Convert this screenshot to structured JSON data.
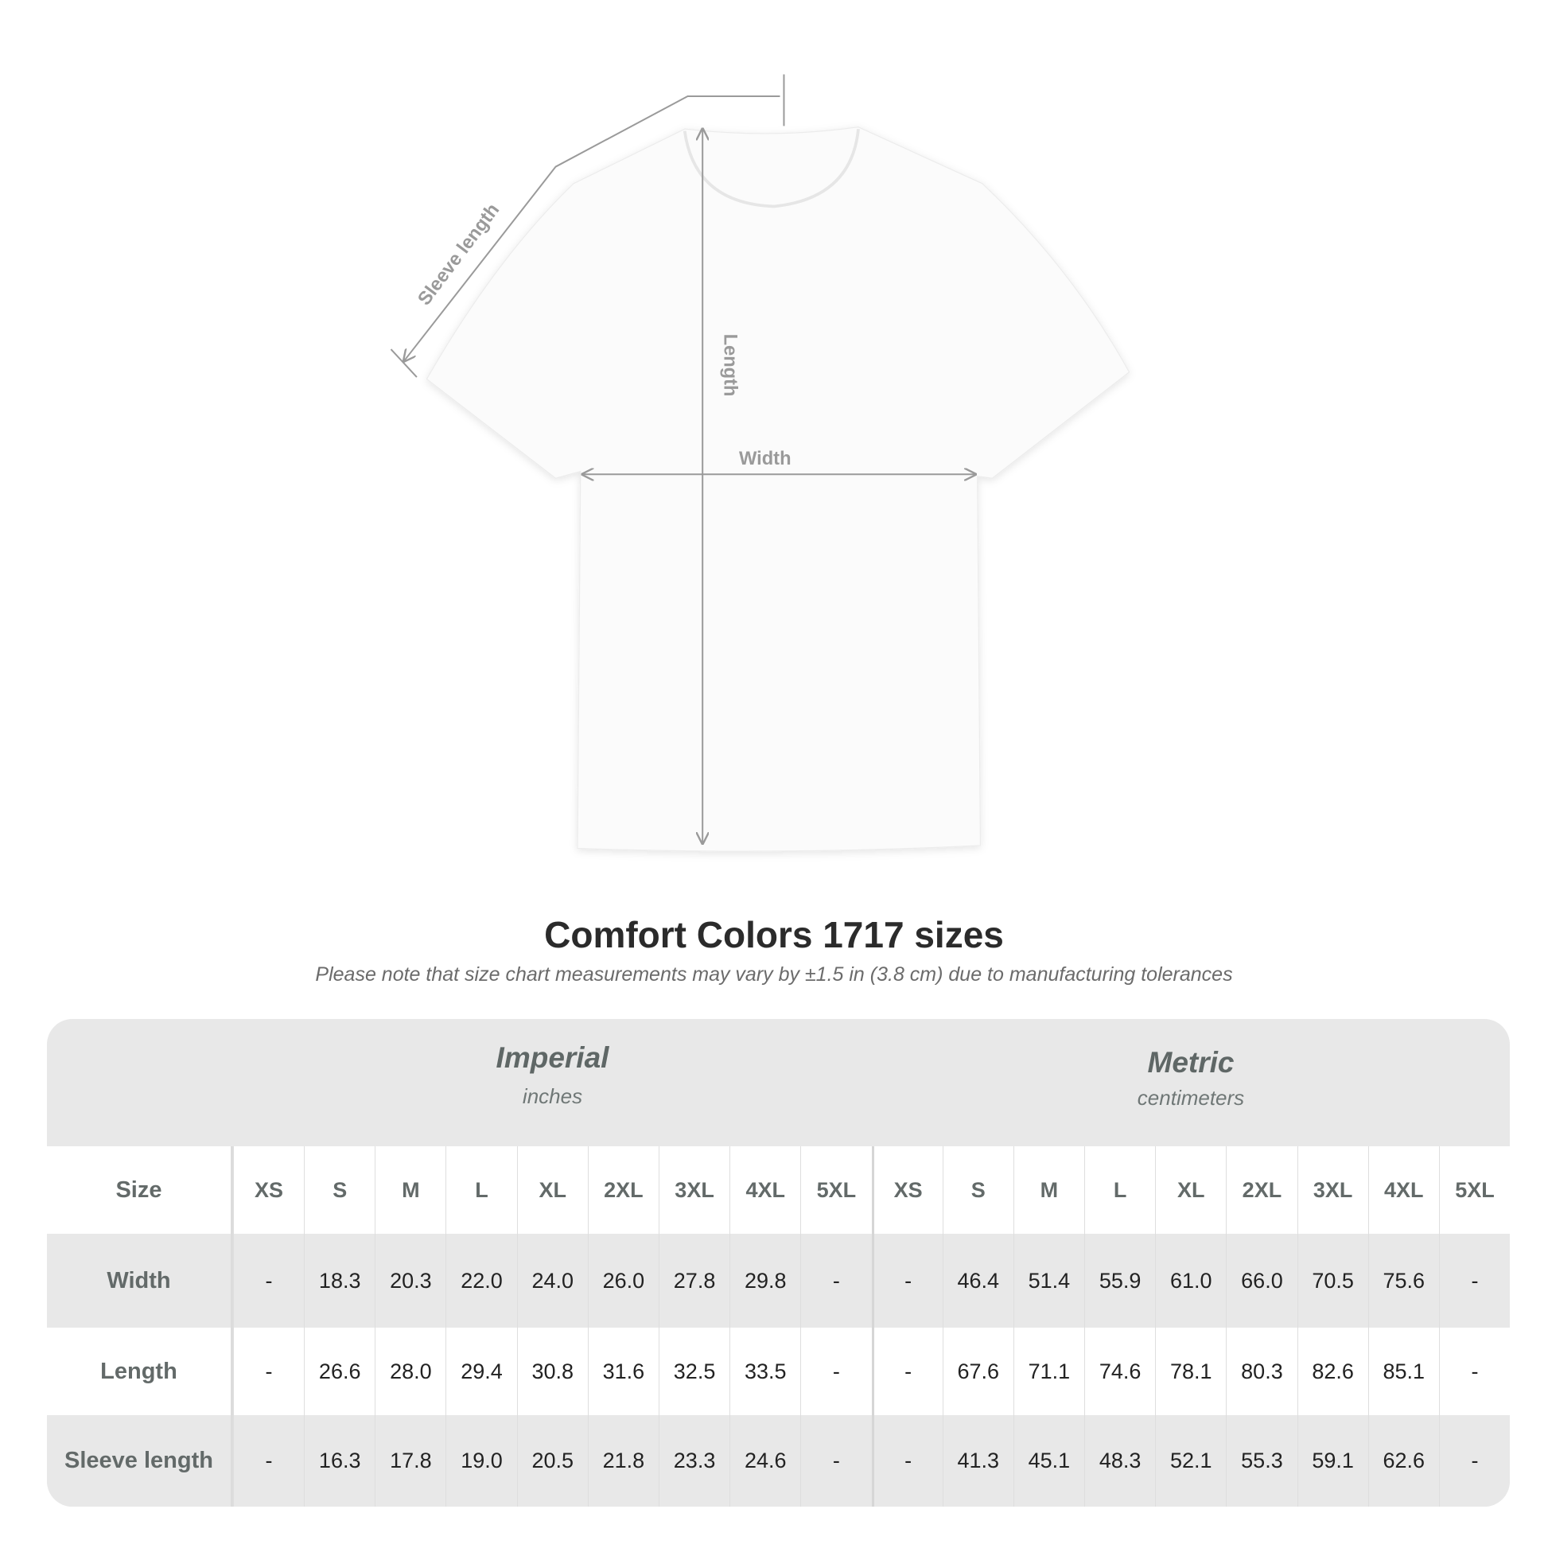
{
  "diagram": {
    "labels": {
      "sleeve_length": "Sleeve length",
      "length": "Length",
      "width": "Width"
    },
    "line_color": "#9a9a9a"
  },
  "title": "Comfort Colors 1717 sizes",
  "subtitle": "Please note that size chart measurements may vary by ±1.5 in (3.8 cm) due to manufacturing tolerances",
  "table": {
    "imperial": {
      "title": "Imperial",
      "unit": "inches"
    },
    "metric": {
      "title": "Metric",
      "unit": "centimeters"
    },
    "size_label": "Size",
    "sizes": [
      "XS",
      "S",
      "M",
      "L",
      "XL",
      "2XL",
      "3XL",
      "4XL",
      "5XL"
    ],
    "rows": [
      {
        "label": "Width",
        "imperial": [
          "-",
          "18.3",
          "20.3",
          "22.0",
          "24.0",
          "26.0",
          "27.8",
          "29.8",
          "-"
        ],
        "metric": [
          "-",
          "46.4",
          "51.4",
          "55.9",
          "61.0",
          "66.0",
          "70.5",
          "75.6",
          "-"
        ]
      },
      {
        "label": "Length",
        "imperial": [
          "-",
          "26.6",
          "28.0",
          "29.4",
          "30.8",
          "31.6",
          "32.5",
          "33.5",
          "-"
        ],
        "metric": [
          "-",
          "67.6",
          "71.1",
          "74.6",
          "78.1",
          "80.3",
          "82.6",
          "85.1",
          "-"
        ]
      },
      {
        "label": "Sleeve length",
        "imperial": [
          "-",
          "16.3",
          "17.8",
          "19.0",
          "20.5",
          "21.8",
          "23.3",
          "24.6",
          "-"
        ],
        "metric": [
          "-",
          "41.3",
          "45.1",
          "48.3",
          "52.1",
          "55.3",
          "59.1",
          "62.6",
          "-"
        ]
      }
    ]
  }
}
